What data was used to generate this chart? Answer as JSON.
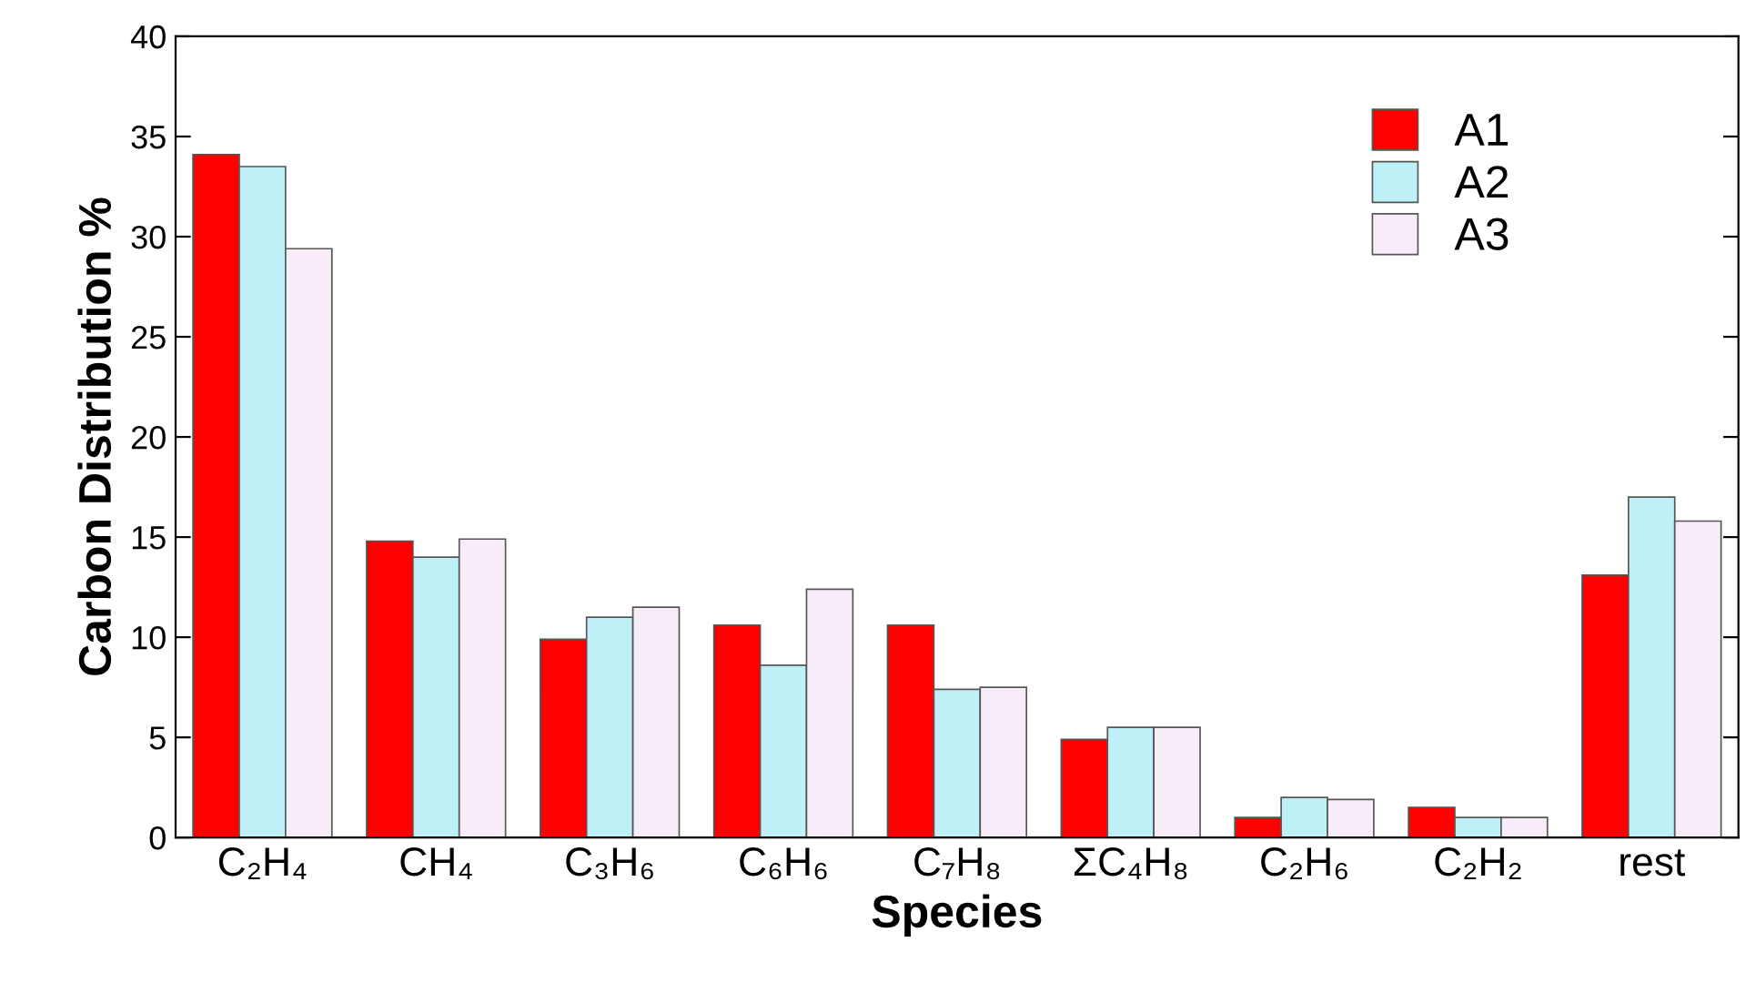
{
  "chart_data": {
    "type": "bar",
    "xlabel": "Species",
    "ylabel": "Carbon Distribution %",
    "categories": [
      "C₂H₄",
      "CH₄",
      "C₃H₆",
      "C₆H₆",
      "C₇H₈",
      "ΣC₄H₈",
      "C₂H₆",
      "C₂H₂",
      "rest"
    ],
    "series": [
      {
        "name": "A1",
        "color": "#ff0000",
        "values": [
          34.1,
          14.8,
          9.9,
          10.6,
          10.6,
          4.9,
          1.0,
          1.5,
          13.1
        ]
      },
      {
        "name": "A2",
        "color": "#bff0f8",
        "values": [
          33.5,
          14.0,
          11.0,
          8.6,
          7.4,
          5.5,
          2.0,
          1.0,
          17.0
        ]
      },
      {
        "name": "A3",
        "color": "#f8ecf8",
        "values": [
          29.4,
          14.9,
          11.5,
          12.4,
          7.5,
          5.5,
          1.9,
          1.0,
          15.8
        ]
      }
    ],
    "ylim": [
      0,
      40
    ],
    "yticks": [
      0,
      5,
      10,
      15,
      20,
      25,
      30,
      35,
      40
    ],
    "grid": false,
    "legend": "top right"
  }
}
